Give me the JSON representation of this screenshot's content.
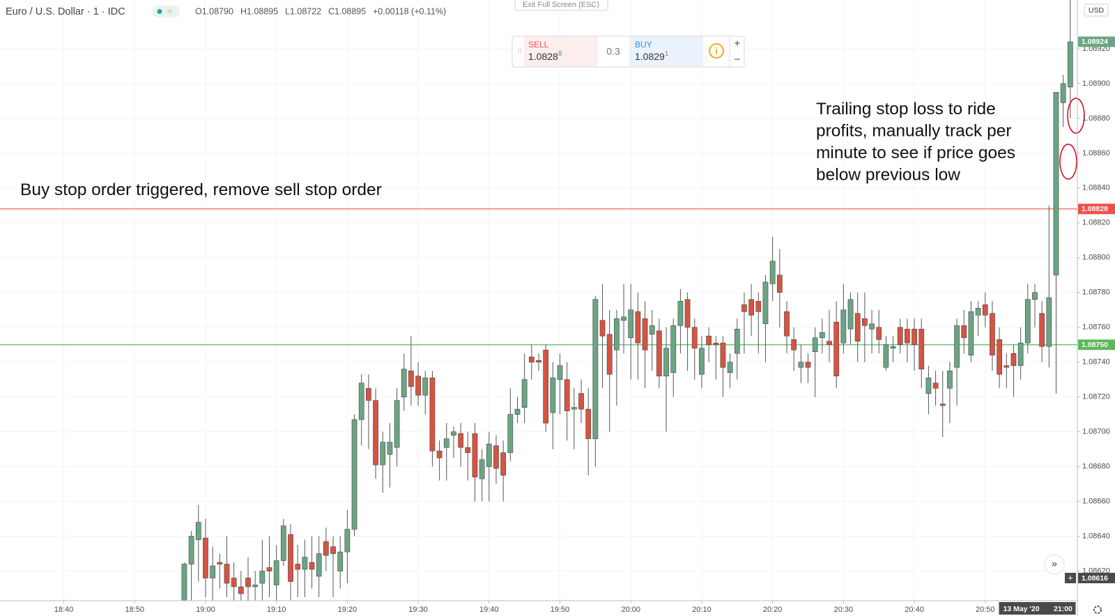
{
  "chart_data": {
    "type": "candlestick",
    "title": "Euro / U.S. Dollar · 1 · IDC",
    "legend_text": [
      "O1.08790",
      "H1.08895",
      "L1.08722",
      "C1.08895",
      "+0.00118 (+0.11%)"
    ],
    "currency": "USD",
    "exit_fullscreen": "Exit Full Screen (ESC)",
    "trade_widget": {
      "sell_label": "SELL",
      "sell_price": "1.0828",
      "sell_pip": "8",
      "spread": 0.3,
      "buy_label": "BUY",
      "buy_price": "1.0829",
      "buy_pip": "1"
    },
    "annotations": {
      "left": "Buy stop order triggered, remove sell stop order",
      "right": [
        "Trailing stop loss to ride",
        "profits, manually track per",
        "minute to see if price goes",
        "below previous low"
      ]
    },
    "up_color": "#6ba583",
    "down_color": "#d75442",
    "xlim": [
      "18:31",
      "21:03"
    ],
    "xticks": [
      "18:40",
      "18:50",
      "19:00",
      "19:10",
      "19:20",
      "19:30",
      "19:40",
      "19:50",
      "20:00",
      "20:10",
      "20:20",
      "20:30",
      "20:40",
      "20:50"
    ],
    "ylim": [
      1.08603,
      1.08948
    ],
    "yticks": [
      {
        "value": 1.0862,
        "label": "1.08620"
      },
      {
        "value": 1.0864,
        "label": "1.08640"
      },
      {
        "value": 1.0866,
        "label": "1.08660"
      },
      {
        "value": 1.0868,
        "label": "1.08680"
      },
      {
        "value": 1.087,
        "label": "1.08700"
      },
      {
        "value": 1.0872,
        "label": "1.08720"
      },
      {
        "value": 1.0874,
        "label": "1.08740"
      },
      {
        "value": 1.0876,
        "label": "1.08760"
      },
      {
        "value": 1.0878,
        "label": "1.08780"
      },
      {
        "value": 1.088,
        "label": "1.08800"
      },
      {
        "value": 1.0882,
        "label": "1.08820"
      },
      {
        "value": 1.0884,
        "label": "1.08840"
      },
      {
        "value": 1.0886,
        "label": "1.08860"
      },
      {
        "value": 1.0888,
        "label": "1.08880"
      },
      {
        "value": 1.089,
        "label": "1.08900"
      },
      {
        "value": 1.0892,
        "label": "1.08920"
      }
    ],
    "grid": true,
    "hlines": [
      {
        "value": 1.08828,
        "label": "1.08828",
        "color": "#f0504a"
      },
      {
        "value": 1.0875,
        "label": "1.08750",
        "color": "#5cb85c"
      }
    ],
    "cursor": {
      "date": "13 May '20",
      "time": "21:00",
      "price": 1.08616
    },
    "x": [
      "18:57",
      "18:58",
      "18:59",
      "19:00",
      "19:01",
      "19:02",
      "19:03",
      "19:04",
      "19:05",
      "19:06",
      "19:07",
      "19:08",
      "19:09",
      "19:10",
      "19:11",
      "19:12",
      "19:13",
      "19:14",
      "19:15",
      "19:16",
      "19:17",
      "19:18",
      "19:19",
      "19:20",
      "19:21",
      "19:22",
      "19:23",
      "19:24",
      "19:25",
      "19:26",
      "19:27",
      "19:28",
      "19:29",
      "19:30",
      "19:31",
      "19:32",
      "19:33",
      "19:34",
      "19:35",
      "19:36",
      "19:37",
      "19:38",
      "19:39",
      "19:40",
      "19:41",
      "19:42",
      "19:43",
      "19:44",
      "19:45",
      "19:46",
      "19:47",
      "19:48",
      "19:49",
      "19:50",
      "19:51",
      "19:52",
      "19:53",
      "19:54",
      "19:55",
      "19:56",
      "19:57",
      "19:58",
      "19:59",
      "20:00",
      "20:01",
      "20:02",
      "20:03",
      "20:04",
      "20:05",
      "20:06",
      "20:07",
      "20:08",
      "20:09",
      "20:10",
      "20:11",
      "20:12",
      "20:13",
      "20:14",
      "20:15",
      "20:16",
      "20:17",
      "20:18",
      "20:19",
      "20:20",
      "20:21",
      "20:22",
      "20:23",
      "20:24",
      "20:25",
      "20:26",
      "20:27",
      "20:28",
      "20:29",
      "20:30",
      "20:31",
      "20:32",
      "20:33",
      "20:34",
      "20:35",
      "20:36",
      "20:37",
      "20:38",
      "20:39",
      "20:40",
      "20:41",
      "20:42",
      "20:43",
      "20:44",
      "20:45",
      "20:46",
      "20:47",
      "20:48",
      "20:49",
      "20:50",
      "20:51",
      "20:52",
      "20:53",
      "20:54",
      "20:55",
      "20:56",
      "20:57",
      "20:58",
      "20:59",
      "21:00",
      "21:01",
      "21:02"
    ],
    "open": [
      1.086,
      1.08624,
      1.08638,
      1.08639,
      1.08616,
      1.08625,
      1.08624,
      1.08616,
      1.08611,
      1.08616,
      1.08611,
      1.08613,
      1.08622,
      1.08612,
      1.08626,
      1.08641,
      1.08624,
      1.08621,
      1.08625,
      1.08617,
      1.08637,
      1.08634,
      1.0862,
      1.08631,
      1.08644,
      1.08707,
      1.08725,
      1.08718,
      1.08681,
      1.08687,
      1.08691,
      1.0872,
      1.08735,
      1.08732,
      1.08721,
      1.08731,
      1.08689,
      1.08691,
      1.08698,
      1.08699,
      1.08691,
      1.08699,
      1.08673,
      1.0868,
      1.08692,
      1.08688,
      1.08688,
      1.0871,
      1.08714,
      1.08743,
      1.08741,
      1.08747,
      1.08711,
      1.0873,
      1.0873,
      1.08713,
      1.08722,
      1.08713,
      1.08696,
      1.08764,
      1.08756,
      1.08747,
      1.08764,
      1.08754,
      1.08769,
      1.08765,
      1.08756,
      1.08758,
      1.08732,
      1.08734,
      1.08761,
      1.08776,
      1.0876,
      1.08733,
      1.08755,
      1.08751,
      1.08751,
      1.08734,
      1.08745,
      1.08773,
      1.08776,
      1.08775,
      1.08762,
      1.08785,
      1.0879,
      1.08769,
      1.08753,
      1.08737,
      1.0874,
      1.08746,
      1.08754,
      1.08752,
      1.08763,
      1.08751,
      1.08759,
      1.08768,
      1.08765,
      1.08759,
      1.0876,
      1.08737,
      1.08748,
      1.0876,
      1.08759,
      1.08759,
      1.08759,
      1.08722,
      1.08728,
      1.08716,
      1.08725,
      1.08737,
      1.08761,
      1.08744,
      1.08767,
      1.08773,
      1.08768,
      1.08753,
      1.08738,
      1.08745,
      1.08738,
      1.08751,
      1.08776,
      1.08768,
      1.08749,
      1.0879,
      1.08889,
      1.08898
    ],
    "high": [
      1.08625,
      1.08643,
      1.08658,
      1.0865,
      1.08634,
      1.0863,
      1.0864,
      1.08625,
      1.0862,
      1.08628,
      1.0862,
      1.08638,
      1.0864,
      1.08635,
      1.0865,
      1.08647,
      1.08635,
      1.08638,
      1.0864,
      1.0864,
      1.08645,
      1.0864,
      1.0864,
      1.08655,
      1.0871,
      1.08733,
      1.08733,
      1.08725,
      1.087,
      1.08705,
      1.08725,
      1.08745,
      1.08755,
      1.0874,
      1.08735,
      1.08735,
      1.08695,
      1.08705,
      1.08703,
      1.08705,
      1.087,
      1.08705,
      1.0869,
      1.087,
      1.08698,
      1.08695,
      1.08725,
      1.0872,
      1.08745,
      1.0875,
      1.08745,
      1.0875,
      1.0874,
      1.08745,
      1.0874,
      1.08725,
      1.0873,
      1.08725,
      1.08778,
      1.08785,
      1.0877,
      1.0877,
      1.08785,
      1.08785,
      1.0878,
      1.08775,
      1.0877,
      1.08765,
      1.0876,
      1.08765,
      1.08782,
      1.0878,
      1.08765,
      1.08755,
      1.0876,
      1.08755,
      1.08755,
      1.08745,
      1.08765,
      1.0878,
      1.08785,
      1.0878,
      1.0879,
      1.08812,
      1.08805,
      1.08775,
      1.0876,
      1.0875,
      1.08745,
      1.0876,
      1.08765,
      1.0877,
      1.08775,
      1.08785,
      1.0878,
      1.0878,
      1.0878,
      1.0877,
      1.0877,
      1.08755,
      1.08755,
      1.08765,
      1.08765,
      1.08765,
      1.08765,
      1.08738,
      1.08735,
      1.08735,
      1.0874,
      1.08765,
      1.0877,
      1.08775,
      1.08775,
      1.0878,
      1.08775,
      1.0876,
      1.08745,
      1.0875,
      1.0876,
      1.08785,
      1.08785,
      1.08775,
      1.0883,
      1.08895,
      1.08905,
      1.08948
    ],
    "low": [
      1.08595,
      1.086,
      1.08614,
      1.08605,
      1.086,
      1.0861,
      1.08605,
      1.08603,
      1.08603,
      1.08603,
      1.08603,
      1.08603,
      1.08605,
      1.08603,
      1.08623,
      1.08603,
      1.08605,
      1.08605,
      1.0861,
      1.08605,
      1.0862,
      1.08605,
      1.0861,
      1.08613,
      1.0864,
      1.08692,
      1.0869,
      1.08673,
      1.08665,
      1.08668,
      1.0868,
      1.08712,
      1.08715,
      1.08715,
      1.0871,
      1.0868,
      1.08672,
      1.08672,
      1.08685,
      1.0868,
      1.08672,
      1.0866,
      1.0866,
      1.0866,
      1.0867,
      1.0866,
      1.08683,
      1.08705,
      1.08705,
      1.0873,
      1.08735,
      1.087,
      1.0869,
      1.0871,
      1.08695,
      1.0869,
      1.08705,
      1.08675,
      1.0868,
      1.08725,
      1.087,
      1.08715,
      1.08745,
      1.0873,
      1.0873,
      1.08725,
      1.08735,
      1.08725,
      1.087,
      1.0872,
      1.08745,
      1.08735,
      1.0873,
      1.08725,
      1.0874,
      1.0873,
      1.0872,
      1.08725,
      1.0873,
      1.08745,
      1.08755,
      1.08745,
      1.0874,
      1.08775,
      1.0876,
      1.08745,
      1.08735,
      1.08728,
      1.08728,
      1.0872,
      1.08745,
      1.0874,
      1.08725,
      1.08745,
      1.0875,
      1.0874,
      1.0874,
      1.08745,
      1.08745,
      1.08735,
      1.0874,
      1.08745,
      1.0874,
      1.08735,
      1.08725,
      1.0871,
      1.08715,
      1.08697,
      1.08705,
      1.08715,
      1.08745,
      1.0874,
      1.08755,
      1.0876,
      1.08735,
      1.08725,
      1.08725,
      1.0872,
      1.0873,
      1.08745,
      1.0876,
      1.0874,
      1.08737,
      1.08722,
      1.08875,
      1.0888
    ],
    "close": [
      1.08624,
      1.0864,
      1.08648,
      1.08616,
      1.08623,
      1.08624,
      1.08613,
      1.08611,
      1.08607,
      1.08611,
      1.08612,
      1.0862,
      1.0862,
      1.08626,
      1.08646,
      1.08614,
      1.08621,
      1.08628,
      1.08621,
      1.0863,
      1.08629,
      1.0863,
      1.08631,
      1.08644,
      1.08707,
      1.08728,
      1.08718,
      1.08681,
      1.08694,
      1.08694,
      1.08718,
      1.08736,
      1.08726,
      1.08721,
      1.08731,
      1.08689,
      1.08685,
      1.08696,
      1.087,
      1.08691,
      1.08688,
      1.08674,
      1.08684,
      1.08693,
      1.08679,
      1.08675,
      1.0871,
      1.08713,
      1.0873,
      1.0874,
      1.0874,
      1.08705,
      1.08731,
      1.08738,
      1.08712,
      1.08714,
      1.08713,
      1.08696,
      1.08776,
      1.08755,
      1.08733,
      1.08765,
      1.08766,
      1.0877,
      1.08751,
      1.08747,
      1.08761,
      1.08732,
      1.08748,
      1.08761,
      1.08775,
      1.0876,
      1.08748,
      1.08748,
      1.0875,
      1.0875,
      1.08737,
      1.0874,
      1.08759,
      1.08769,
      1.08767,
      1.08769,
      1.08786,
      1.08798,
      1.0878,
      1.08755,
      1.08747,
      1.0874,
      1.08737,
      1.08754,
      1.08757,
      1.0875,
      1.08732,
      1.0877,
      1.08776,
      1.08752,
      1.08761,
      1.08762,
      1.08753,
      1.0875,
      1.08749,
      1.0875,
      1.08751,
      1.0875,
      1.08736,
      1.08731,
      1.08725,
      1.08715,
      1.08735,
      1.08761,
      1.08754,
      1.08769,
      1.08771,
      1.08767,
      1.08744,
      1.08733,
      1.08737,
      1.08738,
      1.08751,
      1.08776,
      1.0878,
      1.08749,
      1.08777,
      1.08895,
      1.089,
      1.08924
    ]
  }
}
